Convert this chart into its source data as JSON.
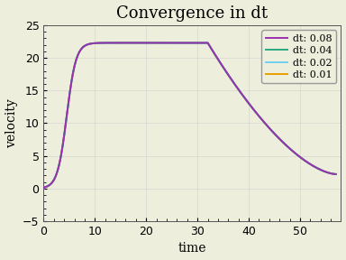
{
  "title": "Convergence in dt",
  "xlabel": "time",
  "ylabel": "velocity",
  "xlim": [
    0,
    58
  ],
  "ylim": [
    -5,
    25
  ],
  "xticks": [
    0,
    10,
    20,
    30,
    40,
    50
  ],
  "yticks": [
    -5,
    0,
    5,
    10,
    15,
    20,
    25
  ],
  "series": [
    {
      "label": "dt: 0.08",
      "color": "#9b30b0",
      "lw": 1.4,
      "zorder": 4
    },
    {
      "label": "dt: 0.04",
      "color": "#2aaa80",
      "lw": 1.4,
      "zorder": 3
    },
    {
      "label": "dt: 0.02",
      "color": "#70d0f0",
      "lw": 1.4,
      "zorder": 2
    },
    {
      "label": "dt: 0.01",
      "color": "#e8a000",
      "lw": 1.4,
      "zorder": 1
    }
  ],
  "background_color": "#eeeedd",
  "grid_color": "#cccccc",
  "title_fontsize": 13,
  "label_fontsize": 10,
  "tick_fontsize": 9,
  "legend_fontsize": 8
}
